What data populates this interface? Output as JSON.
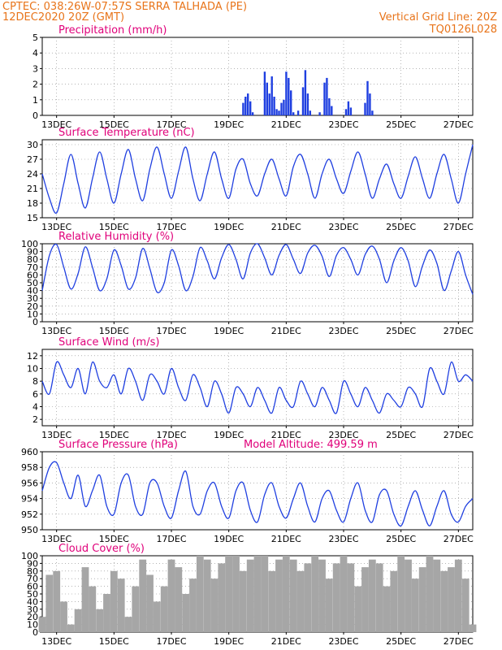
{
  "header": {
    "line1_left": "CPTEC:   038:26W-07:57S   SERRA TALHADA (PE)",
    "line2_left": "12DEC2020 20Z (GMT)",
    "line1_right": "Vertical Grid Line: 20Z",
    "line2_right": "TQ0126L028"
  },
  "colors": {
    "header": "#e8741a",
    "title": "#e0007a",
    "series": "#1f3fe0",
    "cloud": "#a6a6a6",
    "grid": "#888888"
  },
  "x_ticks": [
    "13DEC",
    "15DEC",
    "17DEC",
    "19DEC",
    "21DEC",
    "23DEC",
    "25DEC",
    "27DEC"
  ],
  "chart_data": [
    {
      "type": "bar",
      "title": "Precipitation (mm/h)",
      "ylim": [
        0,
        5
      ],
      "yticks": [
        "0",
        "1",
        "2",
        "3",
        "4",
        "5"
      ],
      "x_unit": "hours since 12DEC 20Z",
      "x": [
        168,
        170,
        172,
        174,
        176,
        178,
        180,
        182,
        184,
        186,
        188,
        190,
        192,
        194,
        196,
        198,
        200,
        202,
        204,
        206,
        208,
        210,
        212,
        214,
        216,
        218,
        220,
        222,
        224,
        226,
        228,
        230,
        232,
        234,
        236,
        238,
        240,
        242,
        244,
        246,
        248,
        250,
        252,
        254,
        256,
        258,
        260,
        262,
        264,
        266,
        268,
        270,
        272,
        274,
        276,
        278,
        280,
        282,
        284,
        286,
        288,
        290
      ],
      "values": [
        0.8,
        1.2,
        1.4,
        0.9,
        0.2,
        0,
        0,
        0,
        0,
        2.8,
        2.1,
        1.4,
        2.5,
        1.2,
        0.4,
        0.3,
        0.8,
        1,
        2.8,
        2.4,
        1.6,
        0.2,
        0,
        0.3,
        0,
        1.8,
        2.9,
        1.4,
        0.3,
        0,
        0,
        0,
        0.2,
        0,
        2.1,
        2.4,
        1.1,
        0.6,
        0,
        0,
        0,
        0,
        0,
        0.4,
        0.9,
        0.5,
        0,
        0,
        0,
        0,
        0,
        0.8,
        2.2,
        1.4,
        0.3,
        0,
        0,
        0,
        0,
        0,
        0,
        0
      ]
    },
    {
      "type": "line",
      "title": "Surface Temperature (nC)",
      "ylim": [
        15,
        31
      ],
      "yticks": [
        "15",
        "18",
        "21",
        "24",
        "27",
        "30"
      ],
      "x_unit": "hours since 12DEC 20Z",
      "x": [
        0,
        6,
        12,
        18,
        24,
        30,
        36,
        42,
        48,
        54,
        60,
        66,
        72,
        78,
        84,
        90,
        96,
        102,
        108,
        114,
        120,
        126,
        132,
        138,
        144,
        150,
        156,
        162,
        168,
        174,
        180,
        186,
        192,
        198,
        204,
        210,
        216,
        222,
        228,
        234,
        240,
        246,
        252,
        258,
        264,
        270,
        276,
        282,
        288,
        294,
        300,
        306,
        312,
        318,
        324,
        330,
        336,
        342,
        348,
        354,
        360
      ],
      "values": [
        24,
        19,
        16,
        22,
        28,
        22,
        17,
        23,
        28.5,
        23,
        18,
        24,
        29,
        23,
        18.5,
        25,
        29.5,
        24,
        19,
        24.5,
        29.5,
        23,
        18.5,
        24,
        28.5,
        23,
        19,
        25,
        27,
        22,
        19.5,
        24,
        27,
        23,
        19.5,
        25.5,
        28,
        24,
        19,
        24,
        27,
        23,
        20,
        24.5,
        28.5,
        24,
        19,
        23,
        26,
        22,
        19,
        23.5,
        27.5,
        23,
        19,
        24,
        28,
        23,
        18,
        24,
        30
      ]
    },
    {
      "type": "line",
      "title": "Relative Humidity (%)",
      "ylim": [
        0,
        100
      ],
      "yticks": [
        "0",
        "10",
        "20",
        "30",
        "40",
        "50",
        "60",
        "70",
        "80",
        "90",
        "100"
      ],
      "x_unit": "hours since 12DEC 20Z",
      "x": [
        0,
        6,
        12,
        18,
        24,
        30,
        36,
        42,
        48,
        54,
        60,
        66,
        72,
        78,
        84,
        90,
        96,
        102,
        108,
        114,
        120,
        126,
        132,
        138,
        144,
        150,
        156,
        162,
        168,
        174,
        180,
        186,
        192,
        198,
        204,
        210,
        216,
        222,
        228,
        234,
        240,
        246,
        252,
        258,
        264,
        270,
        276,
        282,
        288,
        294,
        300,
        306,
        312,
        318,
        324,
        330,
        336,
        342,
        348,
        354,
        360
      ],
      "values": [
        40,
        85,
        99,
        70,
        42,
        62,
        96,
        70,
        40,
        55,
        92,
        72,
        42,
        56,
        94,
        68,
        38,
        50,
        92,
        72,
        40,
        58,
        95,
        78,
        55,
        82,
        99,
        80,
        55,
        88,
        100,
        82,
        60,
        85,
        99,
        80,
        62,
        88,
        98,
        84,
        58,
        85,
        95,
        80,
        60,
        86,
        97,
        80,
        50,
        78,
        95,
        78,
        45,
        72,
        92,
        75,
        40,
        65,
        90,
        60,
        35
      ]
    },
    {
      "type": "line",
      "title": "Surface Wind (m/s)",
      "ylim": [
        1,
        13
      ],
      "yticks": [
        "2",
        "4",
        "6",
        "8",
        "10",
        "12"
      ],
      "x_unit": "hours since 12DEC 20Z",
      "x": [
        0,
        6,
        12,
        18,
        24,
        30,
        36,
        42,
        48,
        54,
        60,
        66,
        72,
        78,
        84,
        90,
        96,
        102,
        108,
        114,
        120,
        126,
        132,
        138,
        144,
        150,
        156,
        162,
        168,
        174,
        180,
        186,
        192,
        198,
        204,
        210,
        216,
        222,
        228,
        234,
        240,
        246,
        252,
        258,
        264,
        270,
        276,
        282,
        288,
        294,
        300,
        306,
        312,
        318,
        324,
        330,
        336,
        342,
        348,
        354,
        360
      ],
      "values": [
        8,
        6,
        11,
        9,
        7,
        10,
        6,
        11,
        8,
        7,
        9,
        6,
        10,
        8,
        5,
        9,
        8,
        6,
        10,
        7,
        5,
        9,
        7,
        4,
        8,
        6,
        3,
        7,
        6,
        4,
        7,
        5,
        3,
        7,
        5,
        4,
        8,
        6,
        4,
        7,
        5,
        3,
        8,
        6,
        4,
        7,
        5,
        3,
        6,
        5,
        4,
        7,
        6,
        4,
        10,
        8,
        6,
        11,
        8,
        9,
        8
      ]
    },
    {
      "type": "line",
      "title": "Surface Pressure (hPa)",
      "annotation": "Model Altitude: 499.59 m",
      "ylim": [
        950,
        960
      ],
      "yticks": [
        "950",
        "952",
        "954",
        "956",
        "958",
        "960"
      ],
      "x_unit": "hours since 12DEC 20Z",
      "x": [
        0,
        6,
        12,
        18,
        24,
        30,
        36,
        42,
        48,
        54,
        60,
        66,
        72,
        78,
        84,
        90,
        96,
        102,
        108,
        114,
        120,
        126,
        132,
        138,
        144,
        150,
        156,
        162,
        168,
        174,
        180,
        186,
        192,
        198,
        204,
        210,
        216,
        222,
        228,
        234,
        240,
        246,
        252,
        258,
        264,
        270,
        276,
        282,
        288,
        294,
        300,
        306,
        312,
        318,
        324,
        330,
        336,
        342,
        348,
        354,
        360
      ],
      "values": [
        955,
        958,
        958.6,
        956,
        954,
        957,
        953,
        955,
        957,
        953,
        952,
        956,
        957,
        953,
        952,
        956,
        956,
        953,
        951.5,
        955,
        957.5,
        953,
        952,
        955,
        956,
        953,
        951.5,
        955,
        956,
        952.5,
        951,
        954.5,
        956,
        953,
        951.5,
        954,
        956,
        953,
        951,
        954,
        955,
        952.5,
        951,
        954,
        956,
        952.5,
        951,
        954.5,
        955,
        952,
        950.5,
        953,
        955,
        952.5,
        950.5,
        953,
        955,
        952,
        951,
        953,
        954
      ]
    },
    {
      "type": "bar",
      "title": "Cloud Cover (%)",
      "ylim": [
        0,
        100
      ],
      "yticks": [
        "0",
        "10",
        "20",
        "30",
        "40",
        "50",
        "60",
        "70",
        "80",
        "90",
        "100"
      ],
      "x_unit": "hours since 12DEC 20Z",
      "x": [
        0,
        6,
        12,
        18,
        24,
        30,
        36,
        42,
        48,
        54,
        60,
        66,
        72,
        78,
        84,
        90,
        96,
        102,
        108,
        114,
        120,
        126,
        132,
        138,
        144,
        150,
        156,
        162,
        168,
        174,
        180,
        186,
        192,
        198,
        204,
        210,
        216,
        222,
        228,
        234,
        240,
        246,
        252,
        258,
        264,
        270,
        276,
        282,
        288,
        294,
        300,
        306,
        312,
        318,
        324,
        330,
        336,
        342,
        348,
        354,
        360
      ],
      "values": [
        20,
        75,
        80,
        40,
        10,
        30,
        85,
        60,
        30,
        50,
        80,
        70,
        20,
        60,
        95,
        75,
        40,
        60,
        95,
        85,
        50,
        70,
        100,
        95,
        70,
        90,
        100,
        100,
        80,
        95,
        100,
        100,
        80,
        95,
        100,
        95,
        80,
        90,
        100,
        95,
        70,
        90,
        100,
        90,
        60,
        85,
        95,
        90,
        60,
        80,
        100,
        95,
        70,
        85,
        100,
        95,
        80,
        85,
        95,
        70,
        10
      ]
    }
  ]
}
